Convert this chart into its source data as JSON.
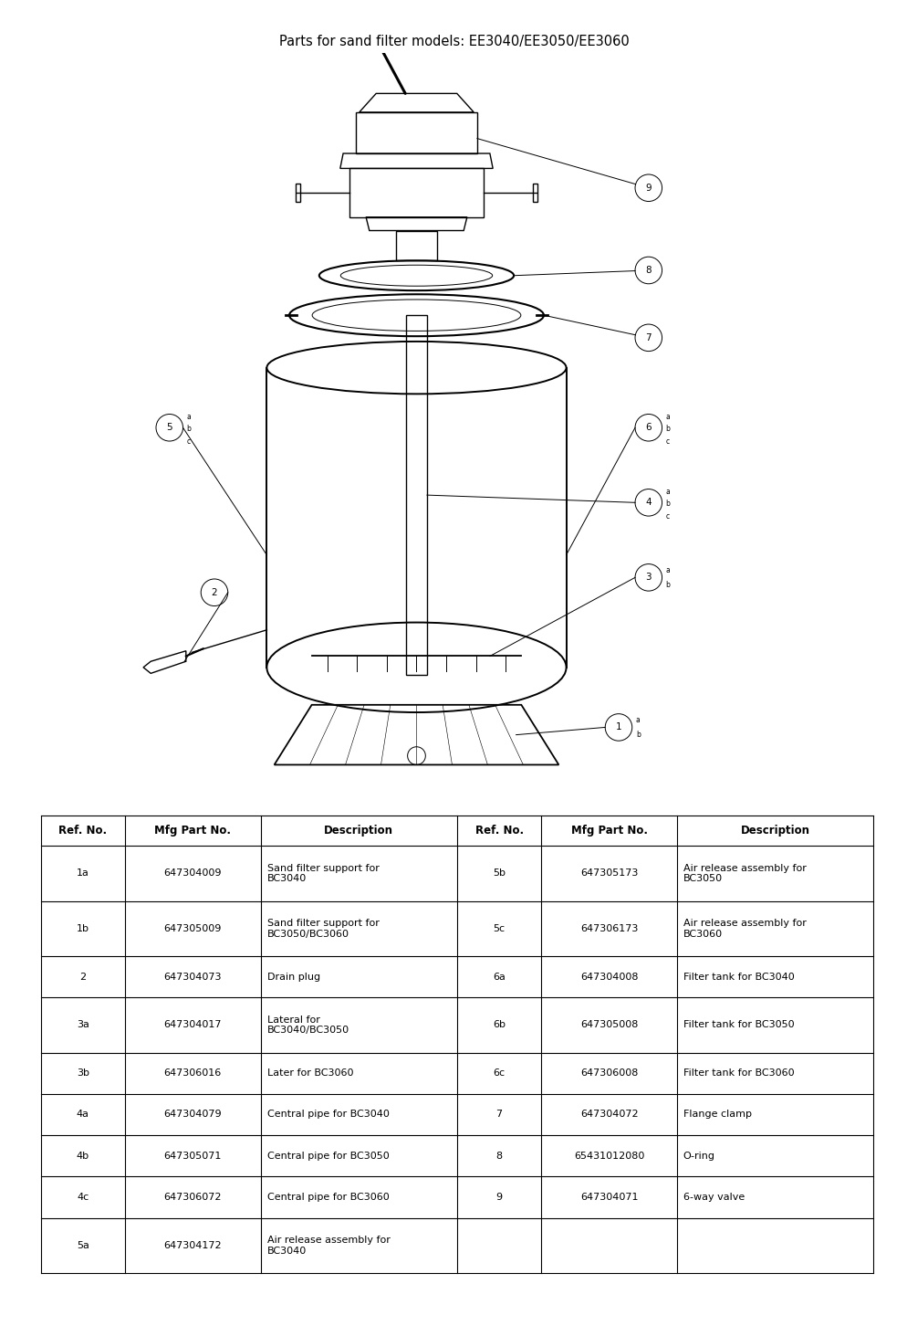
{
  "title": "Parts for sand filter models: EE3040/EE3050/EE3060",
  "title_fontsize": 10.5,
  "background_color": "#ffffff",
  "table": {
    "col_headers": [
      "Ref. No.",
      "Mfg Part No.",
      "Description",
      "Ref. No.",
      "Mfg Part No.",
      "Description"
    ],
    "rows": [
      [
        "1a",
        "647304009",
        "Sand filter support for\nBC3040",
        "5b",
        "647305173",
        "Air release assembly for\nBC3050"
      ],
      [
        "1b",
        "647305009",
        "Sand filter support for\nBC3050/BC3060",
        "5c",
        "647306173",
        "Air release assembly for\nBC3060"
      ],
      [
        "2",
        "647304073",
        "Drain plug",
        "6a",
        "647304008",
        "Filter tank for BC3040"
      ],
      [
        "3a",
        "647304017",
        "Lateral for\nBC3040/BC3050",
        "6b",
        "647305008",
        "Filter tank for BC3050"
      ],
      [
        "3b",
        "647306016",
        "Later for BC3060",
        "6c",
        "647306008",
        "Filter tank for BC3060"
      ],
      [
        "4a",
        "647304079",
        "Central pipe for BC3040",
        "7",
        "647304072",
        "Flange clamp"
      ],
      [
        "4b",
        "647305071",
        "Central pipe for BC3050",
        "8",
        "65431012080",
        "O-ring"
      ],
      [
        "4c",
        "647306072",
        "Central pipe for BC3060",
        "9",
        "647304071",
        "6-way valve"
      ],
      [
        "5a",
        "647304172",
        "Air release assembly for\nBC3040",
        "",
        "",
        ""
      ]
    ],
    "col_props": [
      0.09,
      0.145,
      0.21,
      0.09,
      0.145,
      0.21
    ],
    "border_color": "#000000",
    "font_size": 8.0,
    "header_font_size": 8.5
  }
}
